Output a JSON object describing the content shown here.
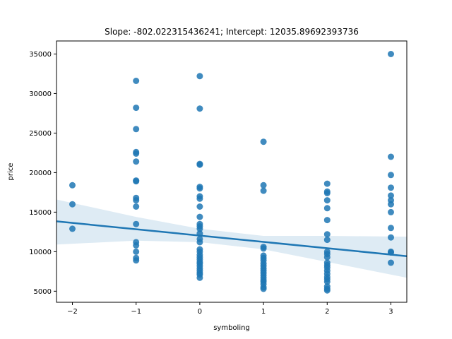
{
  "chart_data": {
    "type": "scatter",
    "title": "Slope: -802.022315436241; Intercept: 12035.89692393736",
    "xlabel": "symboling",
    "ylabel": "price",
    "xlim": [
      -2.25,
      3.25
    ],
    "ylim": [
      3600,
      36650
    ],
    "x_ticks": [
      -2,
      -1,
      0,
      1,
      2,
      3
    ],
    "x_tick_labels": [
      "−2",
      "−1",
      "0",
      "1",
      "2",
      "3"
    ],
    "y_ticks": [
      5000,
      10000,
      15000,
      20000,
      25000,
      30000,
      35000
    ],
    "y_tick_labels": [
      "5000",
      "10000",
      "15000",
      "20000",
      "25000",
      "30000",
      "35000"
    ],
    "grid": false,
    "colors": {
      "points": "#1f77b4",
      "line": "#1f77b4",
      "band": "#1f77b4"
    },
    "regression": {
      "slope": -802.022315436241,
      "intercept": 12035.89692393736,
      "ci_upper": [
        [
          -2.25,
          16600
        ],
        [
          -1,
          14400
        ],
        [
          0,
          12900
        ],
        [
          1,
          12000
        ],
        [
          2,
          12000
        ],
        [
          3.25,
          11900
        ]
      ],
      "ci_lower": [
        [
          -2.25,
          10900
        ],
        [
          -1,
          11400
        ],
        [
          0,
          11200
        ],
        [
          1,
          10300
        ],
        [
          2,
          8700
        ],
        [
          3.25,
          6700
        ]
      ]
    },
    "series": [
      {
        "points": [
          [
            -2,
            18400
          ],
          [
            -2,
            16000
          ],
          [
            -2,
            12900
          ],
          [
            -1,
            31600
          ],
          [
            -1,
            28200
          ],
          [
            -1,
            25500
          ],
          [
            -1,
            22600
          ],
          [
            -1,
            22400
          ],
          [
            -1,
            21400
          ],
          [
            -1,
            19000
          ],
          [
            -1,
            18900
          ],
          [
            -1,
            16800
          ],
          [
            -1,
            16500
          ],
          [
            -1,
            15700
          ],
          [
            -1,
            13500
          ],
          [
            -1,
            11200
          ],
          [
            -1,
            10800
          ],
          [
            -1,
            10000
          ],
          [
            -1,
            9200
          ],
          [
            -1,
            8900
          ],
          [
            0,
            32200
          ],
          [
            0,
            28100
          ],
          [
            0,
            21100
          ],
          [
            0,
            21000
          ],
          [
            0,
            18200
          ],
          [
            0,
            18000
          ],
          [
            0,
            17000
          ],
          [
            0,
            16700
          ],
          [
            0,
            15700
          ],
          [
            0,
            14400
          ],
          [
            0,
            13500
          ],
          [
            0,
            13200
          ],
          [
            0,
            12900
          ],
          [
            0,
            12300
          ],
          [
            0,
            11600
          ],
          [
            0,
            11200
          ],
          [
            0,
            10300
          ],
          [
            0,
            10000
          ],
          [
            0,
            9600
          ],
          [
            0,
            9300
          ],
          [
            0,
            9000
          ],
          [
            0,
            8700
          ],
          [
            0,
            8500
          ],
          [
            0,
            8200
          ],
          [
            0,
            7900
          ],
          [
            0,
            7600
          ],
          [
            0,
            7300
          ],
          [
            0,
            7100
          ],
          [
            0,
            6700
          ],
          [
            1,
            23900
          ],
          [
            1,
            18400
          ],
          [
            1,
            17700
          ],
          [
            1,
            10600
          ],
          [
            1,
            10400
          ],
          [
            1,
            9500
          ],
          [
            1,
            9200
          ],
          [
            1,
            8900
          ],
          [
            1,
            8500
          ],
          [
            1,
            8200
          ],
          [
            1,
            7900
          ],
          [
            1,
            7600
          ],
          [
            1,
            7300
          ],
          [
            1,
            7000
          ],
          [
            1,
            6700
          ],
          [
            1,
            6400
          ],
          [
            1,
            6200
          ],
          [
            1,
            5900
          ],
          [
            1,
            5500
          ],
          [
            1,
            5300
          ],
          [
            2,
            18600
          ],
          [
            2,
            17600
          ],
          [
            2,
            17400
          ],
          [
            2,
            16500
          ],
          [
            2,
            15500
          ],
          [
            2,
            14000
          ],
          [
            2,
            12200
          ],
          [
            2,
            11500
          ],
          [
            2,
            10000
          ],
          [
            2,
            9700
          ],
          [
            2,
            9300
          ],
          [
            2,
            8600
          ],
          [
            2,
            8300
          ],
          [
            2,
            8000
          ],
          [
            2,
            7600
          ],
          [
            2,
            7200
          ],
          [
            2,
            6800
          ],
          [
            2,
            6500
          ],
          [
            2,
            6200
          ],
          [
            2,
            5600
          ],
          [
            2,
            5300
          ],
          [
            2,
            5100
          ],
          [
            3,
            35000
          ],
          [
            3,
            22000
          ],
          [
            3,
            19700
          ],
          [
            3,
            18100
          ],
          [
            3,
            17100
          ],
          [
            3,
            16500
          ],
          [
            3,
            16000
          ],
          [
            3,
            15000
          ],
          [
            3,
            13000
          ],
          [
            3,
            11800
          ],
          [
            3,
            10000
          ],
          [
            3,
            9900
          ],
          [
            3,
            8600
          ]
        ]
      }
    ]
  }
}
